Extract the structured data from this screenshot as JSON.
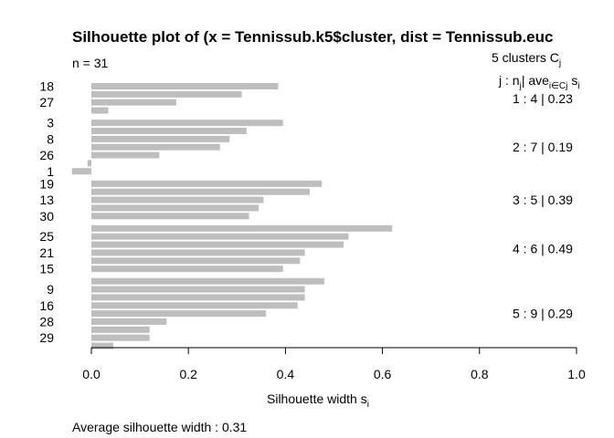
{
  "chart_data": {
    "type": "bar",
    "title": "Silhouette plot of (x = Tennissub.k5$cluster, dist = Tennissub.euc",
    "n_label": "n = 31",
    "xlabel": "Silhouette width s",
    "xlabel_sub": "i",
    "xlim": [
      0,
      1
    ],
    "xticks": [
      "0.0",
      "0.2",
      "0.4",
      "0.6",
      "0.8",
      "1.0"
    ],
    "bar_color": "#bebebe",
    "summary": "Average silhouette width :  0.31",
    "header": {
      "clusters_label": "5  clusters  C",
      "clusters_sub": "j",
      "columns": "j :  n",
      "columns_sub": "j",
      "ave_label": "| ave",
      "ave_sub": "i∈Cj",
      "s_label": "s",
      "s_sub": "i"
    },
    "clusters": [
      {
        "label": "1 :   4  |  0.23",
        "values": [
          0.385,
          0.31,
          0.175,
          0.035
        ]
      },
      {
        "label": "2 :   7  |  0.19",
        "values": [
          0.395,
          0.32,
          0.285,
          0.265,
          0.14,
          -0.008,
          -0.04
        ]
      },
      {
        "label": "3 :   5  |  0.39",
        "values": [
          0.475,
          0.45,
          0.355,
          0.345,
          0.325
        ]
      },
      {
        "label": "4 :   6  |  0.49",
        "values": [
          0.62,
          0.53,
          0.52,
          0.44,
          0.43,
          0.395
        ]
      },
      {
        "label": "5 :   9  |  0.29",
        "values": [
          0.48,
          0.44,
          0.44,
          0.425,
          0.36,
          0.155,
          0.12,
          0.12,
          0.045
        ]
      }
    ],
    "row_labels": [
      {
        "bar": 0,
        "text": "18"
      },
      {
        "bar": 2,
        "text": "27"
      },
      {
        "bar": 4,
        "text": "3"
      },
      {
        "bar": 6,
        "text": "8"
      },
      {
        "bar": 8,
        "text": "26"
      },
      {
        "bar": 10,
        "text": "1"
      },
      {
        "bar": 11,
        "text": "19"
      },
      {
        "bar": 13,
        "text": "13"
      },
      {
        "bar": 15,
        "text": "30"
      },
      {
        "bar": 17,
        "text": "25"
      },
      {
        "bar": 19,
        "text": "21"
      },
      {
        "bar": 21,
        "text": "15"
      },
      {
        "bar": 23,
        "text": "9"
      },
      {
        "bar": 25,
        "text": "16"
      },
      {
        "bar": 27,
        "text": "28"
      },
      {
        "bar": 29,
        "text": "29"
      }
    ]
  }
}
